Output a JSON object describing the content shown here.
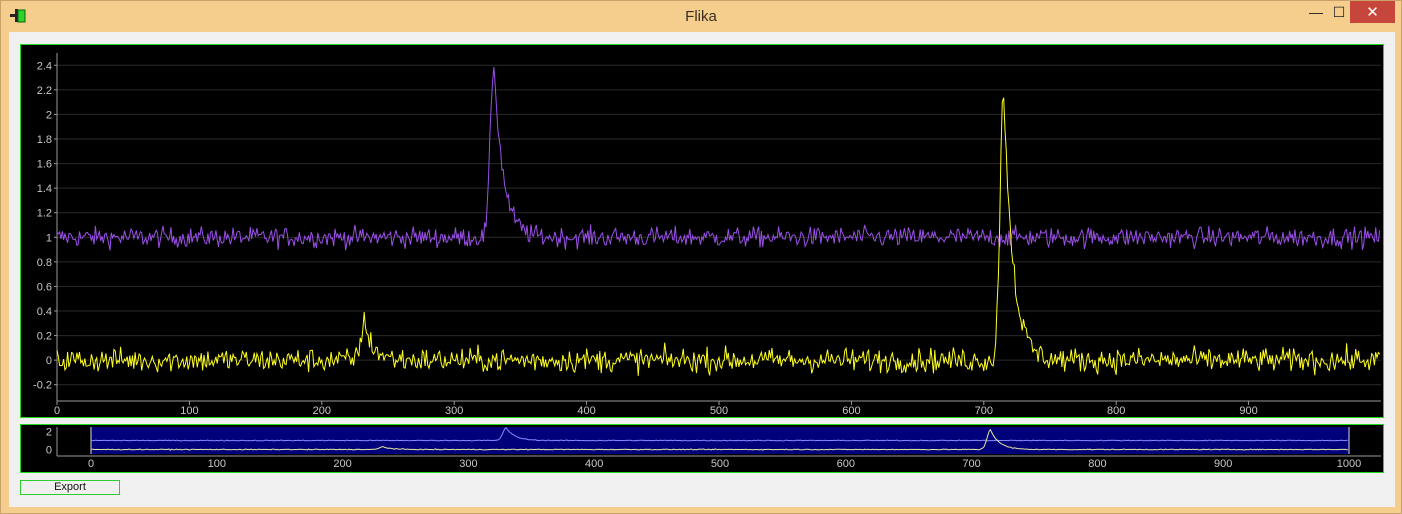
{
  "window": {
    "title": "Flika",
    "controls": {
      "minimize": "—",
      "maximize": "☐",
      "close": "✕"
    }
  },
  "export_button": {
    "label": "Export"
  },
  "colors": {
    "series_purple": "#9a4fe8",
    "series_yellow": "#ffff22",
    "frame_green": "#1ed91e",
    "overview_region": "#00007a",
    "axis_text": "#c8c8c8"
  },
  "chart_data": [
    {
      "type": "line",
      "title": "",
      "xlabel": "",
      "ylabel": "",
      "xlim": [
        0,
        1000
      ],
      "ylim": [
        -0.3,
        2.5
      ],
      "xticks": [
        0,
        100,
        200,
        300,
        400,
        500,
        600,
        700,
        800,
        900
      ],
      "yticks": [
        -0.2,
        0,
        0.2,
        0.4,
        0.6,
        0.8,
        1,
        1.2,
        1.4,
        1.6,
        1.8,
        2,
        2.2,
        2.4
      ],
      "grid": true,
      "series": [
        {
          "color": "#9a4fe8",
          "baseline": 1.0,
          "noise": 0.05,
          "peaks": [
            {
              "x": 330,
              "y": 2.42
            }
          ],
          "points": [
            [
              0,
              1.0
            ],
            [
              100,
              1.02
            ],
            [
              200,
              1.0
            ],
            [
              300,
              0.98
            ],
            [
              322,
              1.1
            ],
            [
              330,
              2.42
            ],
            [
              340,
              1.4
            ],
            [
              350,
              1.02
            ],
            [
              400,
              1.0
            ],
            [
              500,
              1.0
            ],
            [
              600,
              1.0
            ],
            [
              700,
              1.0
            ],
            [
              800,
              1.0
            ],
            [
              900,
              1.0
            ],
            [
              1000,
              1.0
            ]
          ]
        },
        {
          "color": "#ffff22",
          "baseline": 0.0,
          "noise": 0.06,
          "peaks": [
            {
              "x": 232,
              "y": 0.3
            },
            {
              "x": 715,
              "y": 2.22
            }
          ],
          "points": [
            [
              0,
              0.0
            ],
            [
              100,
              0.0
            ],
            [
              225,
              0.05
            ],
            [
              232,
              0.3
            ],
            [
              245,
              0.0
            ],
            [
              300,
              0.0
            ],
            [
              400,
              0.0
            ],
            [
              500,
              0.0
            ],
            [
              600,
              0.0
            ],
            [
              705,
              0.1
            ],
            [
              715,
              2.22
            ],
            [
              725,
              0.6
            ],
            [
              740,
              0.05
            ],
            [
              800,
              0.0
            ],
            [
              900,
              0.0
            ],
            [
              1000,
              0.0
            ]
          ]
        }
      ]
    },
    {
      "type": "line",
      "title": "",
      "xlim": [
        0,
        1000
      ],
      "ylim": [
        -0.5,
        2.5
      ],
      "xticks": [
        0,
        100,
        200,
        300,
        400,
        500,
        600,
        700,
        800,
        900,
        1000
      ],
      "yticks": [
        0,
        2
      ],
      "selected_region": [
        0,
        1000
      ],
      "series": [
        {
          "color": "#8a8aff",
          "baseline": 1.0,
          "peaks": [
            {
              "x": 330,
              "y": 2.4
            }
          ]
        },
        {
          "color": "#e8e8a0",
          "baseline": 0.0,
          "peaks": [
            {
              "x": 232,
              "y": 0.3
            },
            {
              "x": 715,
              "y": 2.2
            }
          ]
        }
      ]
    }
  ]
}
